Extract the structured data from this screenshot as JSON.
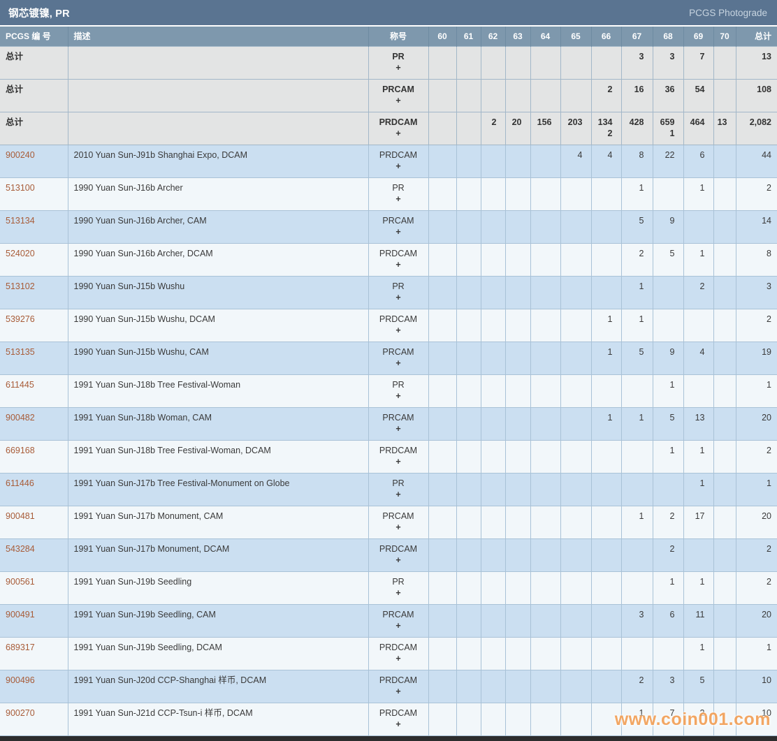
{
  "title_bar": {
    "title": "钢芯镀镍, PR",
    "right_label": "PCGS Photograde"
  },
  "columns": {
    "pcgs_number": "PCGS 编 号",
    "description": "描述",
    "designation": "称号",
    "grades": [
      "60",
      "61",
      "62",
      "63",
      "64",
      "65",
      "66",
      "67",
      "68",
      "69",
      "70"
    ],
    "total": "总计"
  },
  "total_label": "总计",
  "plus_symbol": "+",
  "watermark": "www.coin001.com",
  "theme": {
    "title_bar_bg": "#5a7491",
    "header_bg": "#7e98ad",
    "summary_row_bg": "#e3e4e4",
    "row_blue_bg": "#cbdff1",
    "row_light_bg": "#f2f7fa",
    "pcgs_number_color": "#a85c38",
    "watermark_color": "#f2a057"
  },
  "summary_rows": [
    {
      "designation": "PR",
      "cells": {
        "67": "3",
        "68": "3",
        "69": "7"
      },
      "total": "13"
    },
    {
      "designation": "PRCAM",
      "cells": {
        "66": "2",
        "67": "16",
        "68": "36",
        "69": "54"
      },
      "total": "108"
    },
    {
      "designation": "PRDCAM",
      "cells": {
        "62": "2",
        "63": "20",
        "64": "156",
        "65": "203",
        "66": "134",
        "67": "428",
        "68": "659",
        "69": "464",
        "70": "13"
      },
      "plus_cells": {
        "66": "2",
        "68": "1"
      },
      "total": "2,082"
    }
  ],
  "rows": [
    {
      "pcgs": "900240",
      "desc": "2010 Yuan Sun-J91b Shanghai Expo, DCAM",
      "designation": "PRDCAM",
      "cells": {
        "65": "4",
        "66": "4",
        "67": "8",
        "68": "22",
        "69": "6"
      },
      "total": "44"
    },
    {
      "pcgs": "513100",
      "desc": "1990 Yuan Sun-J16b Archer",
      "designation": "PR",
      "cells": {
        "67": "1",
        "69": "1"
      },
      "total": "2"
    },
    {
      "pcgs": "513134",
      "desc": "1990 Yuan Sun-J16b Archer, CAM",
      "designation": "PRCAM",
      "cells": {
        "67": "5",
        "68": "9"
      },
      "total": "14"
    },
    {
      "pcgs": "524020",
      "desc": "1990 Yuan Sun-J16b Archer, DCAM",
      "designation": "PRDCAM",
      "cells": {
        "67": "2",
        "68": "5",
        "69": "1"
      },
      "total": "8"
    },
    {
      "pcgs": "513102",
      "desc": "1990 Yuan Sun-J15b Wushu",
      "designation": "PR",
      "cells": {
        "67": "1",
        "69": "2"
      },
      "total": "3"
    },
    {
      "pcgs": "539276",
      "desc": "1990 Yuan Sun-J15b Wushu, DCAM",
      "designation": "PRDCAM",
      "cells": {
        "66": "1",
        "67": "1"
      },
      "total": "2"
    },
    {
      "pcgs": "513135",
      "desc": "1990 Yuan Sun-J15b Wushu, CAM",
      "designation": "PRCAM",
      "cells": {
        "66": "1",
        "67": "5",
        "68": "9",
        "69": "4"
      },
      "total": "19"
    },
    {
      "pcgs": "611445",
      "desc": "1991 Yuan Sun-J18b Tree Festival-Woman",
      "designation": "PR",
      "cells": {
        "68": "1"
      },
      "total": "1"
    },
    {
      "pcgs": "900482",
      "desc": "1991 Yuan Sun-J18b Woman, CAM",
      "designation": "PRCAM",
      "cells": {
        "66": "1",
        "67": "1",
        "68": "5",
        "69": "13"
      },
      "total": "20"
    },
    {
      "pcgs": "669168",
      "desc": "1991 Yuan Sun-J18b Tree Festival-Woman, DCAM",
      "designation": "PRDCAM",
      "cells": {
        "68": "1",
        "69": "1"
      },
      "total": "2"
    },
    {
      "pcgs": "611446",
      "desc": "1991 Yuan Sun-J17b Tree Festival-Monument on Globe",
      "designation": "PR",
      "cells": {
        "69": "1"
      },
      "total": "1"
    },
    {
      "pcgs": "900481",
      "desc": "1991 Yuan Sun-J17b Monument, CAM",
      "designation": "PRCAM",
      "cells": {
        "67": "1",
        "68": "2",
        "69": "17"
      },
      "total": "20"
    },
    {
      "pcgs": "543284",
      "desc": "1991 Yuan Sun-J17b Monument, DCAM",
      "designation": "PRDCAM",
      "cells": {
        "68": "2"
      },
      "total": "2"
    },
    {
      "pcgs": "900561",
      "desc": "1991 Yuan Sun-J19b Seedling",
      "designation": "PR",
      "cells": {
        "68": "1",
        "69": "1"
      },
      "total": "2"
    },
    {
      "pcgs": "900491",
      "desc": "1991 Yuan Sun-J19b Seedling, CAM",
      "designation": "PRCAM",
      "cells": {
        "67": "3",
        "68": "6",
        "69": "11"
      },
      "total": "20"
    },
    {
      "pcgs": "689317",
      "desc": "1991 Yuan Sun-J19b Seedling, DCAM",
      "designation": "PRDCAM",
      "cells": {
        "69": "1"
      },
      "total": "1"
    },
    {
      "pcgs": "900496",
      "desc": "1991 Yuan Sun-J20d CCP-Shanghai 样币, DCAM",
      "designation": "PRDCAM",
      "cells": {
        "67": "2",
        "68": "3",
        "69": "5"
      },
      "total": "10"
    },
    {
      "pcgs": "900270",
      "desc": "1991 Yuan Sun-J21d CCP-Tsun-i 样币, DCAM",
      "designation": "PRDCAM",
      "cells": {
        "67": "1",
        "68": "7",
        "69": "2"
      },
      "total": "10"
    }
  ]
}
